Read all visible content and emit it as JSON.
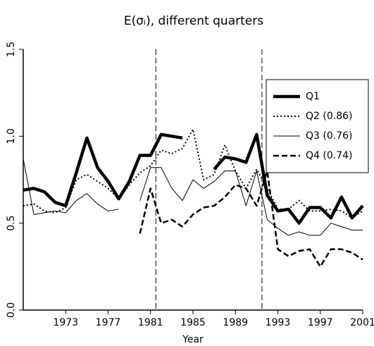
{
  "chart_data": {
    "type": "line",
    "title": "E(σᵢ), different quarters",
    "xlabel": "Year",
    "x": [
      1969,
      1970,
      1971,
      1972,
      1973,
      1974,
      1975,
      1976,
      1977,
      1978,
      1979,
      1980,
      1981,
      1982,
      1983,
      1984,
      1985,
      1986,
      1987,
      1988,
      1989,
      1990,
      1991,
      1992,
      1993,
      1994,
      1995,
      1996,
      1997,
      1998,
      1999,
      2000,
      2001
    ],
    "series": [
      {
        "name": "Q1",
        "color": "#000000",
        "line_style": "thick",
        "values": [
          0.69,
          0.7,
          0.68,
          0.62,
          0.6,
          0.79,
          0.99,
          0.82,
          0.74,
          0.64,
          0.74,
          0.89,
          0.89,
          1.01,
          1.0,
          0.99,
          null,
          null,
          0.81,
          0.88,
          0.87,
          0.85,
          1.01,
          0.66,
          0.57,
          0.58,
          0.5,
          0.59,
          0.59,
          0.53,
          0.65,
          0.53,
          0.6
        ]
      },
      {
        "name": "Q2 (0.86)",
        "color": "#000000",
        "line_style": "dotted",
        "values": [
          0.6,
          0.61,
          0.57,
          0.56,
          0.59,
          0.75,
          0.78,
          0.74,
          0.7,
          0.64,
          0.72,
          0.79,
          0.83,
          0.92,
          0.9,
          0.93,
          1.04,
          0.75,
          0.78,
          0.95,
          0.8,
          0.7,
          0.81,
          0.7,
          0.58,
          0.58,
          0.63,
          0.57,
          0.57,
          0.58,
          0.57,
          0.53,
          0.57
        ]
      },
      {
        "name": "Q3 (0.76)",
        "color": "#000000",
        "line_style": "thin",
        "values": [
          0.87,
          0.55,
          0.56,
          0.57,
          0.56,
          0.63,
          0.67,
          0.61,
          0.57,
          0.58,
          null,
          0.63,
          0.82,
          0.82,
          0.7,
          0.63,
          0.75,
          0.7,
          0.74,
          0.8,
          0.8,
          0.6,
          0.8,
          0.52,
          0.47,
          0.43,
          0.45,
          0.43,
          0.43,
          0.5,
          0.48,
          0.46,
          0.46
        ]
      },
      {
        "name": "Q4 (0.74)",
        "color": "#000000",
        "line_style": "dashed",
        "values": [
          null,
          null,
          null,
          null,
          null,
          null,
          null,
          null,
          null,
          null,
          null,
          0.44,
          0.7,
          0.5,
          0.52,
          0.48,
          0.55,
          0.59,
          0.6,
          0.65,
          0.72,
          0.7,
          0.6,
          0.8,
          0.35,
          0.31,
          0.34,
          0.35,
          0.25,
          0.35,
          0.35,
          0.33,
          0.29
        ]
      }
    ],
    "vlines": [
      1981.5,
      1991.5
    ],
    "xlim": [
      1969,
      2001
    ],
    "xticks": [
      1973,
      1977,
      1981,
      1985,
      1989,
      1993,
      1997,
      2001
    ],
    "ylim": [
      0,
      1.5
    ],
    "yticks": [
      {
        "value": 0,
        "label": "0.0"
      },
      {
        "value": 0.5,
        "label": "0.5"
      },
      {
        "value": 1,
        "label": "1.0"
      },
      {
        "value": 1.5,
        "label": "1.5"
      }
    ],
    "legend": "upper right"
  }
}
